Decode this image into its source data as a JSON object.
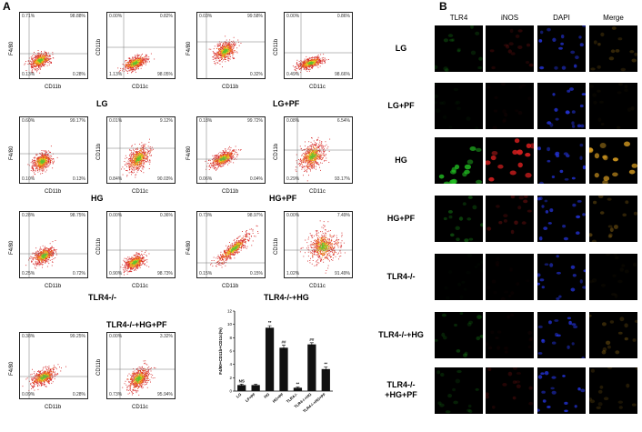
{
  "panel_a": {
    "letter": "A",
    "plots": [
      {
        "id": "lg-1",
        "x_label": "CD11b",
        "y_label": "F4/80",
        "q": [
          "0.71%",
          "98.88%",
          "0.13%",
          "0.28%"
        ]
      },
      {
        "id": "lg-2",
        "x_label": "CD11c",
        "y_label": "CD11b",
        "q": [
          "0.00%",
          "0.82%",
          "1.13%",
          "98.05%"
        ]
      },
      {
        "id": "lgpf-1",
        "x_label": "CD11b",
        "y_label": "F4/80",
        "q": [
          "0.03%",
          "99.58%",
          "",
          "0.32%"
        ]
      },
      {
        "id": "lgpf-2",
        "x_label": "CD11c",
        "y_label": "CD11b",
        "q": [
          "0.00%",
          "0.86%",
          "0.49%",
          "98.66%"
        ]
      },
      {
        "id": "hg-1",
        "x_label": "CD11b",
        "y_label": "F4/80",
        "q": [
          "0.60%",
          "99.17%",
          "0.10%",
          "0.13%"
        ]
      },
      {
        "id": "hg-2",
        "x_label": "CD11c",
        "y_label": "CD11b",
        "q": [
          "0.01%",
          "9.12%",
          "0.84%",
          "90.03%"
        ]
      },
      {
        "id": "hgpf-1",
        "x_label": "CD11b",
        "y_label": "F4/80",
        "q": [
          "0.18%",
          "99.72%",
          "0.06%",
          "0.04%"
        ]
      },
      {
        "id": "hgpf-2",
        "x_label": "CD11c",
        "y_label": "CD11b",
        "q": [
          "0.08%",
          "6.54%",
          "0.29%",
          "93.17%"
        ]
      },
      {
        "id": "tlr-1",
        "x_label": "CD11b",
        "y_label": "F4/80",
        "q": [
          "0.28%",
          "98.75%",
          "0.25%",
          "0.72%"
        ]
      },
      {
        "id": "tlr-2",
        "x_label": "CD11c",
        "y_label": "CD11b",
        "q": [
          "0.00%",
          "0.36%",
          "0.90%",
          "98.73%"
        ]
      },
      {
        "id": "tlrhg-1",
        "x_label": "CD11b",
        "y_label": "F4/80",
        "q": [
          "0.73%",
          "98.97%",
          "0.15%",
          "0.15%"
        ]
      },
      {
        "id": "tlrhg-2",
        "x_label": "CD11c",
        "y_label": "CD11b",
        "q": [
          "0.00%",
          "7.49%",
          "1.02%",
          "91.49%"
        ]
      },
      {
        "id": "tlrhgpf-1",
        "x_label": "CD11b",
        "y_label": "F4/80",
        "q": [
          "0.38%",
          "99.25%",
          "0.09%",
          "0.28%"
        ]
      },
      {
        "id": "tlrhgpf-2",
        "x_label": "CD11c",
        "y_label": "CD11b",
        "q": [
          "0.00%",
          "3.32%",
          "0.73%",
          "95.94%"
        ]
      }
    ],
    "group_labels": [
      "LG",
      "LG+PF",
      "HG",
      "HG+PF",
      "TLR4-/-",
      "TLR4-/-+HG",
      "TLR4-/-+HG+PF"
    ]
  },
  "chart_data": {
    "type": "bar",
    "ylabel": "F4/80+CD11b+CD11c(%)",
    "ylim": [
      0,
      12
    ],
    "yticks": [
      "0",
      "2",
      "4",
      "6",
      "8",
      "10",
      "12"
    ],
    "categories": [
      "LG",
      "LF+PF",
      "HG",
      "HG+PF",
      "TLR4-/-",
      "TLR4-/-+HG",
      "TLR4-/-+HG+PF"
    ],
    "values": [
      0.9,
      0.9,
      9.5,
      6.5,
      0.5,
      7.0,
      3.3
    ],
    "errors": [
      0.15,
      0.15,
      0.3,
      0.4,
      0.1,
      0.25,
      0.3
    ],
    "annotations": [
      "NS",
      "",
      "**",
      "##",
      "**",
      "##",
      "**"
    ]
  },
  "panel_b": {
    "letter": "B",
    "columns": [
      "TLR4",
      "iNOS",
      "DAPI",
      "Merge"
    ],
    "rows": [
      "LG",
      "LG+PF",
      "HG",
      "HG+PF",
      "TLR4-/-",
      "TLR4-/-+HG",
      "TLR4-/-\n+HG+PF"
    ],
    "colors": {
      "tlr4": "#22c022",
      "inos": "#e02020",
      "dapi": "#2a3cff",
      "merge": "#d49a20"
    },
    "intensity": {
      "tlr4": [
        0.25,
        0.05,
        0.9,
        0.35,
        0.03,
        0.3,
        0.2
      ],
      "inos": [
        0.2,
        0.05,
        0.9,
        0.3,
        0.03,
        0.05,
        0.2
      ],
      "merge": [
        0.25,
        0.05,
        0.9,
        0.35,
        0.05,
        0.3,
        0.2
      ]
    }
  }
}
